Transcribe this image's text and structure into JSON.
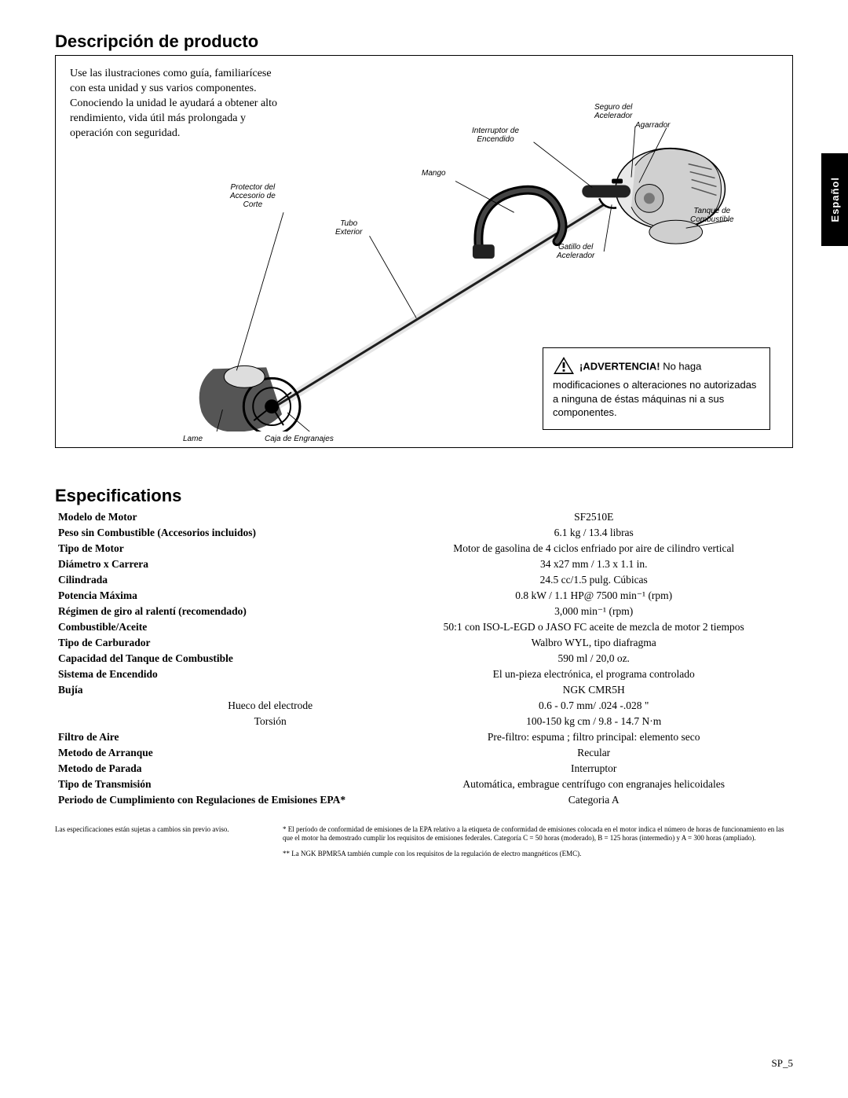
{
  "sideTab": "Español",
  "section1": {
    "title": "Descripción de producto",
    "intro": "Use las ilustraciones como guía, familiarícese con esta unidad y sus varios componentes. Conociendo la unidad le ayudará a obtener alto rendimiento, vida útil más prolongada y operación con seguridad.",
    "labels": {
      "seguro": "Seguro del\nAcelerador",
      "interruptor": "Interruptor de\nEncendido",
      "agarrador": "Agarrador",
      "tanque": "Tanque de\nCombustible",
      "gatillo": "Gatillo del\nAcelerador",
      "mango": "Mango",
      "protector": "Protector del\nAccesorio de\nCorte",
      "tubo": "Tubo\nExterior",
      "lame": "Lame",
      "caja": "Caja de Engranajes"
    },
    "warning": {
      "title": "¡ADVERTENCIA!",
      "body": " No haga modificaciones o alteraciones  no autorizadas a  ninguna de éstas máquinas ni a sus componentes."
    }
  },
  "section2": {
    "title": "Especifications",
    "rows": [
      {
        "label": "Modelo de Motor",
        "value": "SF2510E"
      },
      {
        "label": "Peso sin Combustible (Accesorios incluidos)",
        "value": "6.1 kg / 13.4 libras"
      },
      {
        "label": "Tipo de Motor",
        "value": "Motor de gasolina de 4 ciclos enfriado por aire de cilindro vertical"
      },
      {
        "label": "Diámetro x Carrera",
        "value": "34 x27 mm / 1.3 x 1.1 in."
      },
      {
        "label": "Cilindrada",
        "value": "24.5 cc/1.5  pulg. Cúbicas"
      },
      {
        "label": "Potencia Máxima",
        "value": "0.8 kW / 1.1 HP@ 7500 min⁻¹ (rpm)"
      },
      {
        "label": "Régimen de giro al ralentí (recomendado)",
        "value": "3,000 min⁻¹ (rpm)"
      },
      {
        "label": "Combustible/Aceite",
        "value": "50:1 con ISO-L-EGD o JASO FC aceite de mezcla de motor 2 tiempos"
      },
      {
        "label": "Tipo de Carburador",
        "value": "Walbro WYL, tipo diafragma"
      },
      {
        "label": "Capacidad del Tanque de Combustible",
        "value": "590 ml / 20,0 oz."
      },
      {
        "label": "Sistema de Encendido",
        "value": "El un-pieza electrónica, el programa controlado"
      },
      {
        "label": "Bujía",
        "value": "NGK CMR5H"
      },
      {
        "sublabel": "Hueco del electrode",
        "value": "0.6 - 0.7 mm/ .024 -.028 \""
      },
      {
        "sublabel": "Torsión",
        "value": "100-150 kg cm / 9.8 - 14.7 N·m"
      },
      {
        "label": "Filtro de Aire",
        "value": "Pre-filtro: espuma ; filtro principal: elemento seco"
      },
      {
        "label": "Metodo de Arranque",
        "value": "Recular"
      },
      {
        "label": "Metodo de Parada",
        "value": "Interruptor"
      },
      {
        "label": "Tipo de Transmisión",
        "value": "Automática, embrague centrífugo con engranajes helicoidales"
      },
      {
        "label": "Periodo de Cumplimiento con Regulaciones de Emisiones EPA*",
        "value": "Categoria A"
      }
    ],
    "footnote_left": "Las especificaciones están sujetas a cambios sin previo aviso.",
    "footnote_right_1": "* El período de conformidad de emisiones de la EPA relativo a la etiqueta de conformidad de emisiones colocada en el motor indica el número de horas de funcionamiento en las que el motor ha demostrado cumplir los requisitos de emisiones federales.  Categoría C = 50 horas (moderado), B = 125 horas (intermedio) y A = 300 horas (ampliado).",
    "footnote_right_2": "** La NGK BPMR5A también cumple con los requisitos de la regulación de electro  mangnéticos (EMC)."
  },
  "pageNum": "SP_5"
}
